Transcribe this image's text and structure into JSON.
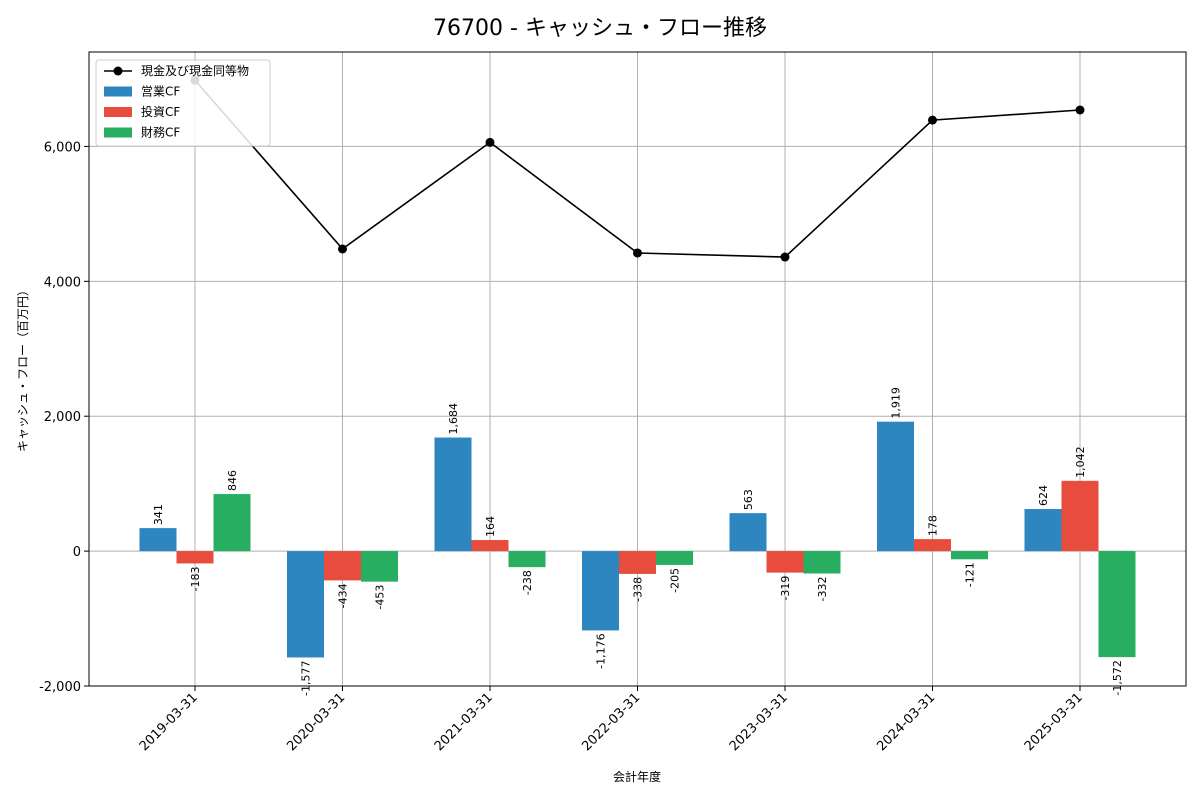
{
  "chart_data": {
    "type": "bar",
    "title": "76700 - キャッシュ・フロー推移",
    "xlabel": "会計年度",
    "ylabel": "キャッシュ・フロー（百万円）",
    "categories": [
      "2019-03-31",
      "2020-03-31",
      "2021-03-31",
      "2022-03-31",
      "2023-03-31",
      "2024-03-31",
      "2025-03-31"
    ],
    "ylim": [
      -2000,
      7400
    ],
    "yticks": [
      -2000,
      0,
      2000,
      4000,
      6000
    ],
    "ytick_labels": [
      "-2,000",
      "0",
      "2,000",
      "4,000",
      "6,000"
    ],
    "grid": true,
    "legend_position": "top-left",
    "series": [
      {
        "name": "営業CF",
        "kind": "bar",
        "color": "#2e86c1",
        "values": [
          341,
          -1577,
          1684,
          -1176,
          563,
          1919,
          624
        ],
        "labels": [
          "341",
          "-1,577",
          "1,684",
          "-1,176",
          "563",
          "1,919",
          "624"
        ]
      },
      {
        "name": "投資CF",
        "kind": "bar",
        "color": "#e74c3c",
        "values": [
          -183,
          -434,
          164,
          -338,
          -319,
          178,
          1042
        ],
        "labels": [
          "-183",
          "-434",
          "164",
          "-338",
          "-319",
          "178",
          "1,042"
        ]
      },
      {
        "name": "財務CF",
        "kind": "bar",
        "color": "#27ae60",
        "values": [
          846,
          -453,
          -238,
          -205,
          -332,
          -121,
          -1572
        ],
        "labels": [
          "846",
          "-453",
          "-238",
          "-205",
          "-332",
          "-121",
          "-1,572"
        ]
      },
      {
        "name": "現金及び現金同等物",
        "kind": "line",
        "color": "#000000",
        "values": [
          6980,
          4480,
          6060,
          4420,
          4360,
          6390,
          6540
        ]
      }
    ]
  }
}
